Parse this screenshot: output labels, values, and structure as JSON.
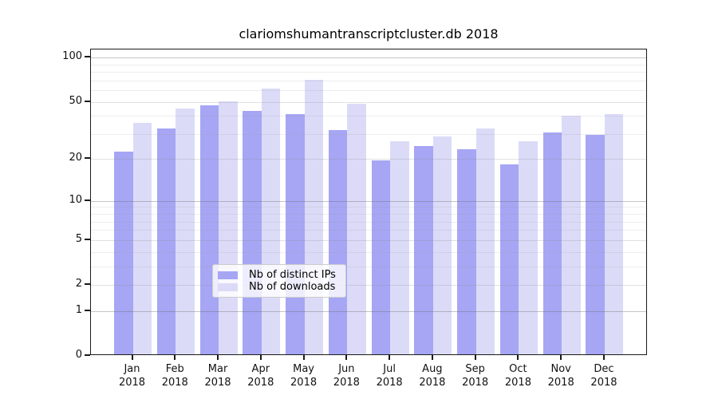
{
  "chart_data": {
    "type": "bar",
    "title": "clariomshumantranscriptcluster.db 2018",
    "categories": [
      "Jan",
      "Feb",
      "Mar",
      "Apr",
      "May",
      "Jun",
      "Jul",
      "Aug",
      "Sep",
      "Oct",
      "Nov",
      "Dec"
    ],
    "year_label": "2018",
    "series": [
      {
        "name": "Nb of distinct IPs",
        "color": "#a6a6f4",
        "values": [
          22,
          32,
          46,
          42,
          40,
          31,
          19,
          24,
          23,
          18,
          30,
          29
        ]
      },
      {
        "name": "Nb of downloads",
        "color": "#dbdbf8",
        "values": [
          35,
          44,
          49,
          60,
          69,
          47,
          26,
          28,
          32,
          26,
          39,
          40
        ]
      }
    ],
    "xlabel": "",
    "ylabel": "",
    "y_axis": {
      "scale": "log1p",
      "ticks": [
        100,
        50,
        20,
        10,
        5,
        2,
        1,
        0
      ],
      "tick_labels": [
        "100",
        "50",
        "20",
        "10",
        "5",
        "2",
        "1",
        "0"
      ],
      "ylim": [
        0,
        114
      ]
    },
    "grid": {
      "major_lines": [
        100,
        10,
        1
      ],
      "mid_lines": [
        50,
        20,
        5,
        2
      ],
      "minor_lines": [
        90,
        80,
        70,
        60,
        40,
        30,
        9,
        8,
        7,
        6,
        4,
        3
      ]
    },
    "legend": {
      "position": "bottom-center",
      "entries": [
        "Nb of distinct IPs",
        "Nb of downloads"
      ]
    }
  }
}
